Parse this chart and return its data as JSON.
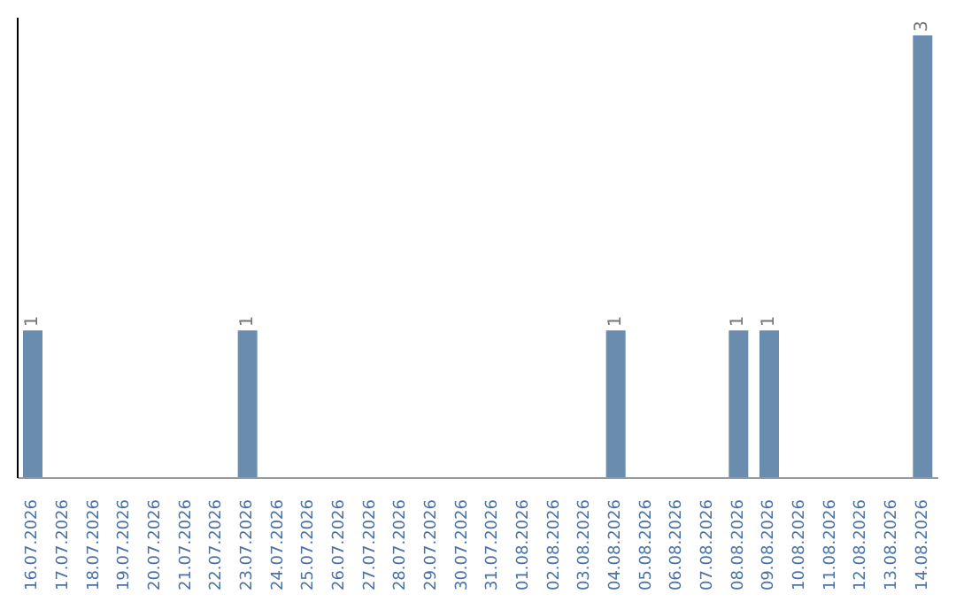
{
  "chart_data": {
    "type": "bar",
    "categories": [
      "16.07.2026",
      "17.07.2026",
      "18.07.2026",
      "19.07.2026",
      "20.07.2026",
      "21.07.2026",
      "22.07.2026",
      "23.07.2026",
      "24.07.2026",
      "25.07.2026",
      "26.07.2026",
      "27.07.2026",
      "28.07.2026",
      "29.07.2026",
      "30.07.2026",
      "31.07.2026",
      "01.08.2026",
      "02.08.2026",
      "03.08.2026",
      "04.08.2026",
      "05.08.2026",
      "06.08.2026",
      "07.08.2026",
      "08.08.2026",
      "09.08.2026",
      "10.08.2026",
      "11.08.2026",
      "12.08.2026",
      "13.08.2026",
      "14.08.2026"
    ],
    "values": [
      1,
      0,
      0,
      0,
      0,
      0,
      0,
      1,
      0,
      0,
      0,
      0,
      0,
      0,
      0,
      0,
      0,
      0,
      0,
      1,
      0,
      0,
      0,
      1,
      1,
      0,
      0,
      0,
      0,
      3
    ],
    "value_labels": [
      "1",
      null,
      null,
      null,
      null,
      null,
      null,
      "1",
      null,
      null,
      null,
      null,
      null,
      null,
      null,
      null,
      null,
      null,
      null,
      "1",
      null,
      null,
      null,
      "1",
      "1",
      null,
      null,
      null,
      null,
      "3"
    ],
    "color": "#6a8caf",
    "grid": false,
    "legend": false
  }
}
